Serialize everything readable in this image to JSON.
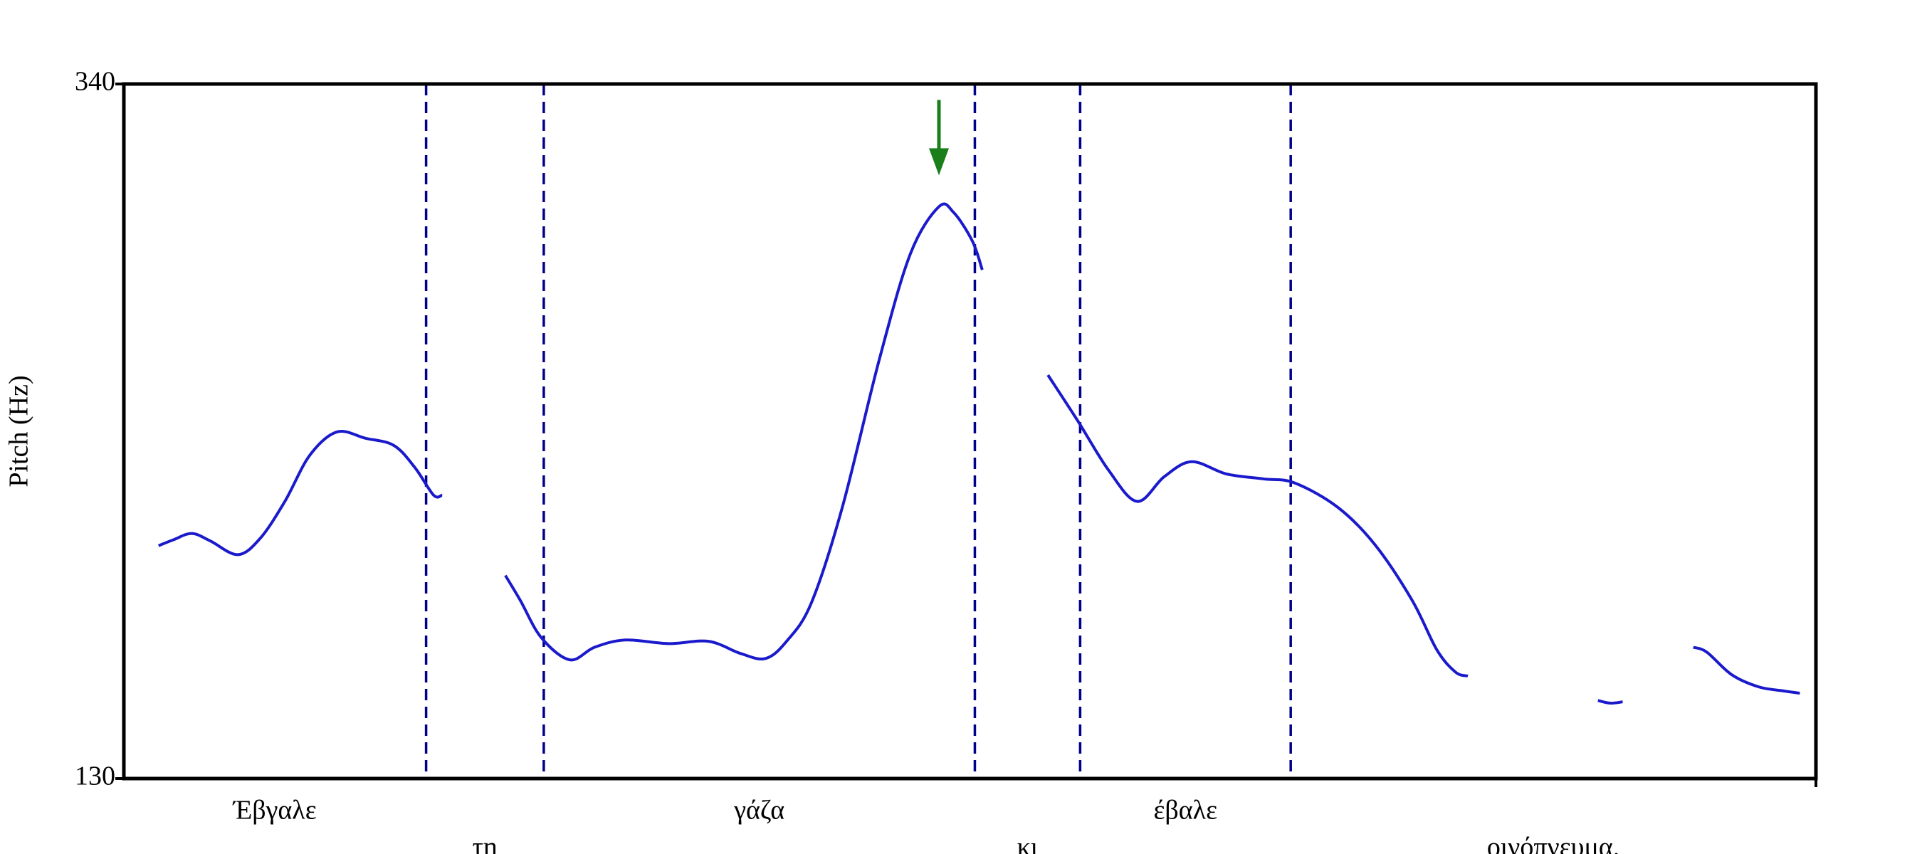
{
  "chart_data": {
    "type": "line",
    "y_label": "Pitch (Hz)",
    "xlim": [
      0,
      2.732
    ],
    "ylim": [
      130,
      340
    ],
    "yticks": [
      130,
      340
    ],
    "x": [
      0.056,
      0.08,
      0.11,
      0.14,
      0.184,
      0.22,
      0.26,
      0.3,
      0.344,
      0.39,
      0.436,
      0.47,
      0.5,
      0.514,
      null,
      0.616,
      0.64,
      0.674,
      0.72,
      0.76,
      0.81,
      0.88,
      0.944,
      0.996,
      1.036,
      1.07,
      1.11,
      1.16,
      1.22,
      1.27,
      1.316,
      1.34,
      1.37,
      1.386,
      null,
      1.492,
      1.54,
      1.59,
      1.636,
      1.68,
      1.724,
      1.78,
      1.84,
      1.89,
      1.96,
      2.02,
      2.08,
      2.12,
      2.15,
      2.17,
      null,
      2.38,
      2.4,
      2.42,
      null,
      2.534,
      2.556,
      2.596,
      2.64,
      2.68,
      2.706
    ],
    "series": [
      {
        "color": "#1a1acc",
        "values": [
          200.4,
          202.2,
          204.1,
          201.8,
          197.7,
          202.6,
          213.8,
          227.7,
          234.8,
          232.9,
          230.7,
          224.0,
          215.7,
          215.7,
          null,
          191.4,
          183.9,
          172.6,
          165.9,
          169.7,
          171.9,
          170.8,
          171.5,
          167.8,
          166.3,
          171.5,
          183.1,
          212.0,
          256.9,
          288.7,
          302.9,
          301.1,
          292.5,
          283.8,
          null,
          252.0,
          238.2,
          223.2,
          213.8,
          221.3,
          225.8,
          222.1,
          220.6,
          219.4,
          212.0,
          200.7,
          183.9,
          168.9,
          162.2,
          161.0,
          null,
          153.6,
          152.8,
          153.2,
          null,
          169.7,
          168.2,
          161.4,
          157.7,
          156.5,
          155.8
        ]
      }
    ],
    "word_boundaries": [
      0.488,
      0.678,
      1.374,
      1.544,
      1.884
    ],
    "boundary_color": "#00008b",
    "words": [
      "Έβγαλε",
      "τη",
      "γάζα",
      "κι",
      "έβαλε",
      "οινόπνευμα."
    ],
    "peak_arrow_color": "#1a7f1a"
  }
}
